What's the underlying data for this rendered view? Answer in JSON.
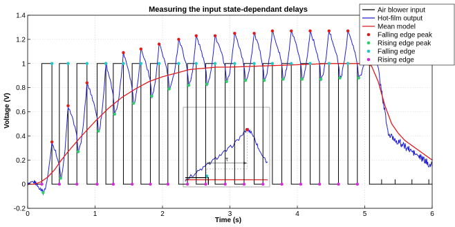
{
  "chart_data": {
    "type": "line",
    "title": "Measuring the input state-dependant delays",
    "xlabel": "Time (s)",
    "ylabel": "Voltage (V)",
    "xlim": [
      0,
      6
    ],
    "ylim": [
      -0.2,
      1.4
    ],
    "x_ticks": [
      0,
      1,
      2,
      3,
      4,
      5,
      6
    ],
    "y_ticks": [
      -0.2,
      0,
      0.2,
      0.4,
      0.6,
      0.8,
      1,
      1.2,
      1.4
    ],
    "x_tick_labels": [
      "0",
      "1",
      "2",
      "3",
      "4",
      "5",
      "6"
    ],
    "y_tick_labels": [
      "-0.2",
      "0",
      "0.2",
      "0.4",
      "0.6",
      "0.8",
      "1",
      "1.2",
      "1.4"
    ],
    "grid": true,
    "legend_position": "top-right",
    "legend": [
      {
        "label": "Air blower input",
        "kind": "line",
        "color": "#000000"
      },
      {
        "label": "Hot-film output",
        "kind": "line",
        "color": "#1f1fd6"
      },
      {
        "label": "Mean model",
        "kind": "line",
        "color": "#e01b1b"
      },
      {
        "label": "Falling edge peak",
        "kind": "marker",
        "color": "#e01b1b"
      },
      {
        "label": "Rising edge peak",
        "kind": "marker",
        "color": "#2ed06a"
      },
      {
        "label": "Falling edge",
        "kind": "marker",
        "color": "#1fc8c8"
      },
      {
        "label": "Rising edge",
        "kind": "marker",
        "color": "#d62ad6"
      }
    ],
    "series": [
      {
        "name": "Air blower input",
        "color": "#000000",
        "square_wave": {
          "low": 0,
          "high": 1,
          "rising_edges": [
            0.21,
            0.47,
            0.73,
            1.03,
            1.27,
            1.55,
            1.82,
            2.08,
            2.37,
            2.64,
            2.93,
            3.21,
            3.49,
            3.77,
            4.05,
            4.33,
            4.61,
            4.89
          ],
          "falling_edges": [
            0.36,
            0.6,
            0.88,
            1.16,
            1.42,
            1.68,
            1.95,
            2.24,
            2.5,
            2.78,
            3.07,
            3.36,
            3.63,
            3.91,
            4.19,
            4.47,
            4.75,
            5.07
          ],
          "end": 6
        }
      },
      {
        "name": "Mean model",
        "color": "#e01b1b",
        "x": [
          0,
          0.1,
          0.2,
          0.3,
          0.4,
          0.5,
          0.6,
          0.8,
          1.0,
          1.2,
          1.4,
          1.6,
          1.8,
          2.0,
          2.2,
          2.4,
          2.6,
          2.8,
          3.0,
          3.5,
          4.0,
          4.5,
          5.0,
          5.1,
          5.2,
          5.3,
          5.4,
          5.5,
          5.6,
          5.8,
          6.0
        ],
        "y": [
          0,
          0,
          0.02,
          0.06,
          0.12,
          0.2,
          0.27,
          0.4,
          0.52,
          0.63,
          0.72,
          0.79,
          0.85,
          0.89,
          0.92,
          0.95,
          0.96,
          0.97,
          0.97,
          0.98,
          0.99,
          1.0,
          1.0,
          0.98,
          0.85,
          0.65,
          0.5,
          0.42,
          0.36,
          0.28,
          0.2
        ]
      },
      {
        "name": "Falling edge peak",
        "color": "#e01b1b",
        "x": [
          0.36,
          0.6,
          0.88,
          1.16,
          1.42,
          1.68,
          1.95,
          2.24,
          2.5,
          2.78,
          3.07,
          3.36,
          3.63,
          3.91,
          4.19,
          4.47,
          4.75,
          5.07
        ],
        "y": [
          0.35,
          0.65,
          0.84,
          1.0,
          1.09,
          1.12,
          1.16,
          1.2,
          1.23,
          1.23,
          1.25,
          1.25,
          1.27,
          1.27,
          1.27,
          1.27,
          1.27,
          1.28
        ]
      },
      {
        "name": "Rising edge peak",
        "color": "#2ed06a",
        "x": [
          0.23,
          0.49,
          0.75,
          1.05,
          1.29,
          1.57,
          1.84,
          2.1,
          2.39,
          2.66,
          2.95,
          3.23,
          3.51,
          3.79,
          4.07,
          4.35,
          4.63,
          4.91
        ],
        "y": [
          -0.07,
          0.05,
          0.27,
          0.44,
          0.58,
          0.67,
          0.73,
          0.79,
          0.82,
          0.83,
          0.85,
          0.86,
          0.86,
          0.87,
          0.87,
          0.87,
          0.88,
          0.88
        ]
      },
      {
        "name": "Falling edge",
        "color": "#1fc8c8",
        "x": [
          0.36,
          0.6,
          0.88,
          1.16,
          1.42,
          1.68,
          1.95,
          2.24,
          2.5,
          2.78,
          3.07,
          3.36,
          3.63,
          3.91,
          4.19,
          4.47,
          4.75,
          5.07
        ],
        "y": [
          1,
          1,
          1,
          1,
          1,
          1,
          1,
          1,
          1,
          1,
          1,
          1,
          1,
          1,
          1,
          1,
          1,
          1
        ]
      },
      {
        "name": "Rising edge",
        "color": "#d62ad6",
        "x": [
          0.21,
          0.47,
          0.73,
          1.03,
          1.27,
          1.55,
          1.82,
          2.08,
          2.37,
          2.64,
          2.93,
          3.21,
          3.49,
          3.77,
          4.05,
          4.33,
          4.61,
          4.89
        ],
        "y": [
          0,
          0,
          0,
          0,
          0,
          0,
          0,
          0,
          0,
          0,
          0,
          0,
          0,
          0,
          0,
          0,
          0,
          0
        ]
      }
    ],
    "inset": {
      "type": "line",
      "annotation": "τ",
      "series": [
        {
          "name": "Hot-film output",
          "color": "#1f1fd6",
          "x": [
            0.0,
            0.1,
            0.2,
            0.3,
            0.4,
            0.5,
            0.6,
            0.7,
            0.75,
            0.8,
            0.85,
            0.9,
            1.0
          ],
          "y": [
            0.05,
            0.12,
            0.2,
            0.28,
            0.37,
            0.45,
            0.55,
            0.68,
            0.74,
            0.71,
            0.6,
            0.45,
            0.28
          ]
        },
        {
          "name": "Mean model",
          "color": "#e01b1b",
          "x": [
            0.0,
            1.0
          ],
          "y": [
            0.05,
            0.05
          ]
        }
      ],
      "markers": [
        {
          "name": "Rising edge",
          "color": "#1fc8c8",
          "x": 0.26,
          "y": 0.1
        },
        {
          "name": "Falling edge peak",
          "color": "#e01b1b",
          "x": 0.75,
          "y": 0.74
        }
      ]
    }
  }
}
